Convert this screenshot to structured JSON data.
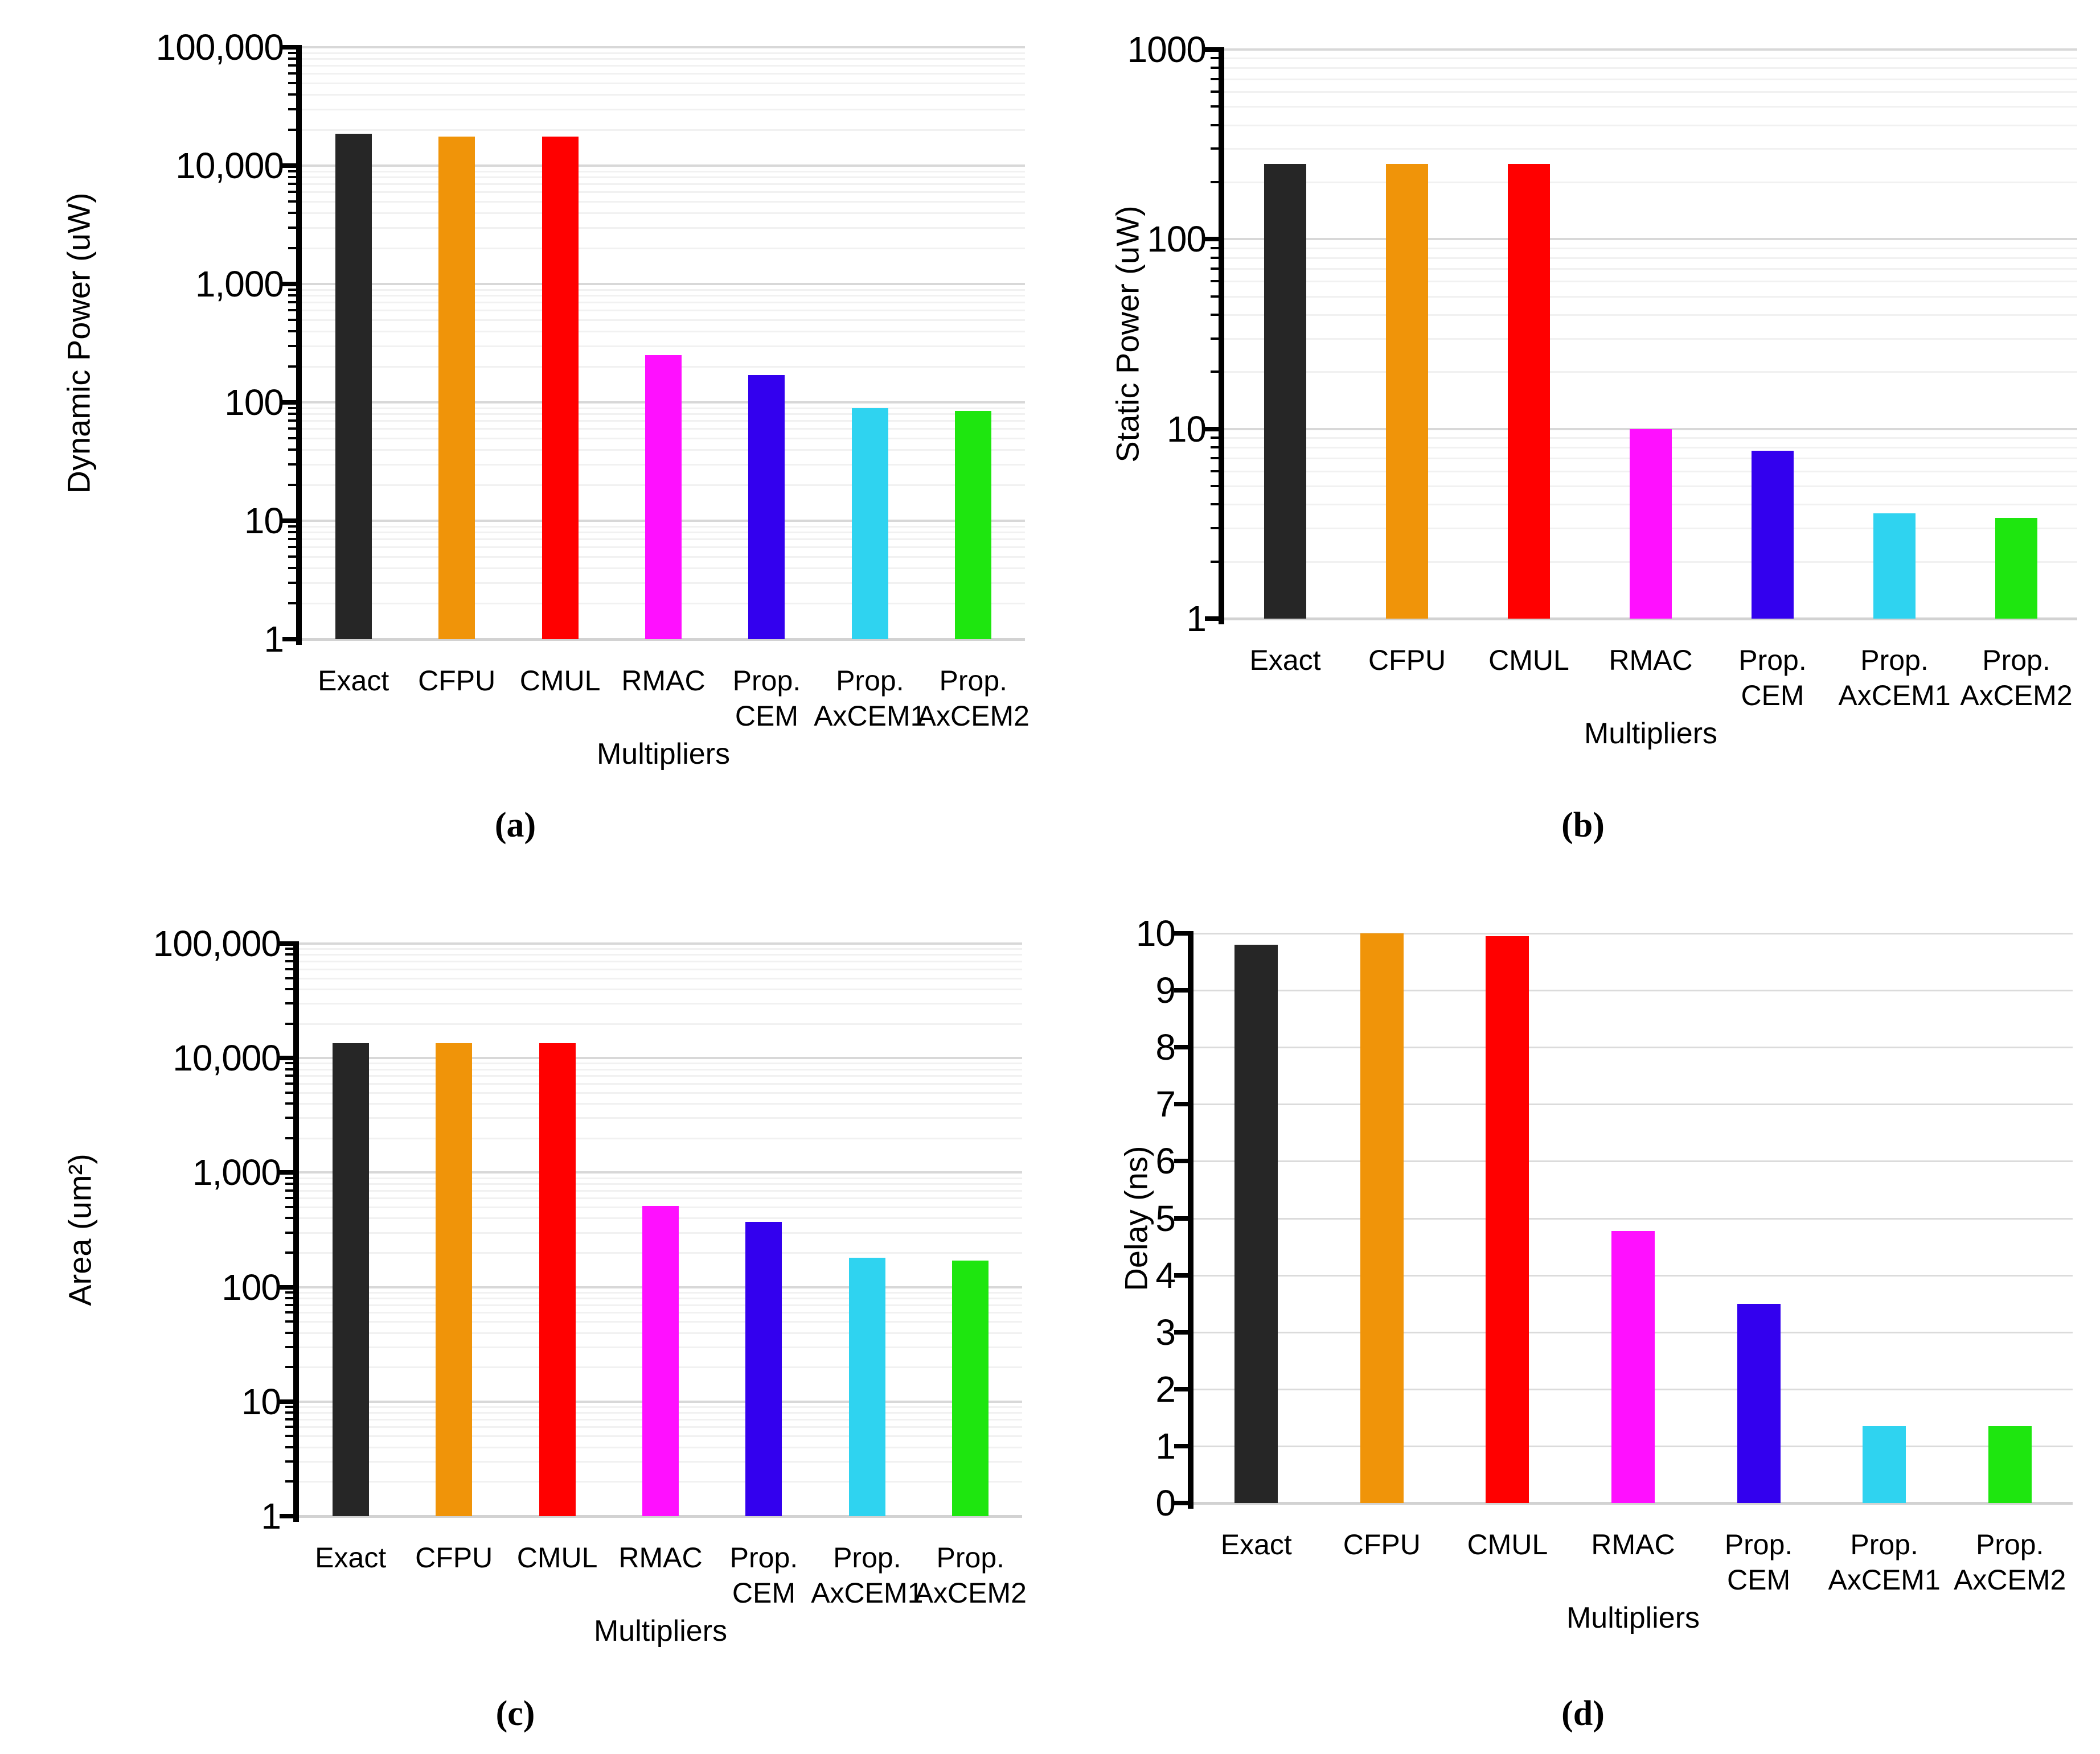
{
  "figure": {
    "bar_colors": [
      "#262626",
      "#F09409",
      "#FF0000",
      "#FF10FF",
      "#3300EE",
      "#2FD3F0",
      "#1EE60F"
    ],
    "gridline_major_color": "#D8D8D8",
    "gridline_minor_color": "#F1F1F1",
    "axis_color": "#000000",
    "background_color": "#FFFFFF"
  },
  "chart_data": [
    {
      "panel": "a",
      "caption": "(a)",
      "type": "bar",
      "yscale": "log",
      "ylabel": "Dynamic Power (uW)",
      "xlabel": "Multipliers",
      "ylim": [
        1,
        100000
      ],
      "grid": true,
      "legend": false,
      "ytick_labels": [
        "100,000",
        "10,000",
        "1,000",
        "100",
        "10",
        "1"
      ],
      "ytick_values": [
        100000,
        10000,
        1000,
        100,
        10,
        1
      ],
      "categories": [
        [
          "Exact"
        ],
        [
          "CFPU"
        ],
        [
          "CMUL"
        ],
        [
          "RMAC"
        ],
        [
          "Prop.",
          "CEM"
        ],
        [
          "Prop.",
          "AxCEM1"
        ],
        [
          "Prop.",
          "AxCEM2"
        ]
      ],
      "values": [
        18500,
        17500,
        17500,
        250,
        170,
        90,
        85
      ]
    },
    {
      "panel": "b",
      "caption": "(b)",
      "type": "bar",
      "yscale": "log",
      "ylabel": "Static Power (uW)",
      "xlabel": "Multipliers",
      "ylim": [
        1,
        1000
      ],
      "grid": true,
      "legend": false,
      "ytick_labels": [
        "1000",
        "100",
        "10",
        "1"
      ],
      "ytick_values": [
        1000,
        100,
        10,
        1
      ],
      "categories": [
        [
          "Exact"
        ],
        [
          "CFPU"
        ],
        [
          "CMUL"
        ],
        [
          "RMAC"
        ],
        [
          "Prop.",
          "CEM"
        ],
        [
          "Prop.",
          "AxCEM1"
        ],
        [
          "Prop.",
          "AxCEM2"
        ]
      ],
      "values": [
        250,
        250,
        250,
        10,
        7.7,
        3.6,
        3.4
      ]
    },
    {
      "panel": "c",
      "caption": "(c)",
      "type": "bar",
      "yscale": "log",
      "ylabel": "Area (um²)",
      "xlabel": "Multipliers",
      "ylim": [
        1,
        100000
      ],
      "grid": true,
      "legend": false,
      "ytick_labels": [
        "100,000",
        "10,000",
        "1,000",
        "100",
        "10",
        "1"
      ],
      "ytick_values": [
        100000,
        10000,
        1000,
        100,
        10,
        1
      ],
      "categories": [
        [
          "Exact"
        ],
        [
          "CFPU"
        ],
        [
          "CMUL"
        ],
        [
          "RMAC"
        ],
        [
          "Prop.",
          "CEM"
        ],
        [
          "Prop.",
          "AxCEM1"
        ],
        [
          "Prop.",
          "AxCEM2"
        ]
      ],
      "values": [
        13500,
        13500,
        13500,
        510,
        370,
        180,
        170
      ]
    },
    {
      "panel": "d",
      "caption": "(d)",
      "type": "bar",
      "yscale": "linear",
      "ylabel": "Delay (ns)",
      "xlabel": "Multipliers",
      "ylim": [
        0,
        10
      ],
      "grid": true,
      "legend": false,
      "ytick_labels": [
        "10",
        "9",
        "8",
        "7",
        "6",
        "5",
        "4",
        "3",
        "2",
        "1",
        "0"
      ],
      "ytick_values": [
        10,
        9,
        8,
        7,
        6,
        5,
        4,
        3,
        2,
        1,
        0
      ],
      "categories": [
        [
          "Exact"
        ],
        [
          "CFPU"
        ],
        [
          "CMUL"
        ],
        [
          "RMAC"
        ],
        [
          "Prop.",
          "CEM"
        ],
        [
          "Prop.",
          "AxCEM1"
        ],
        [
          "Prop.",
          "AxCEM2"
        ]
      ],
      "values": [
        9.8,
        10,
        9.95,
        4.78,
        3.5,
        1.35,
        1.35
      ]
    }
  ]
}
